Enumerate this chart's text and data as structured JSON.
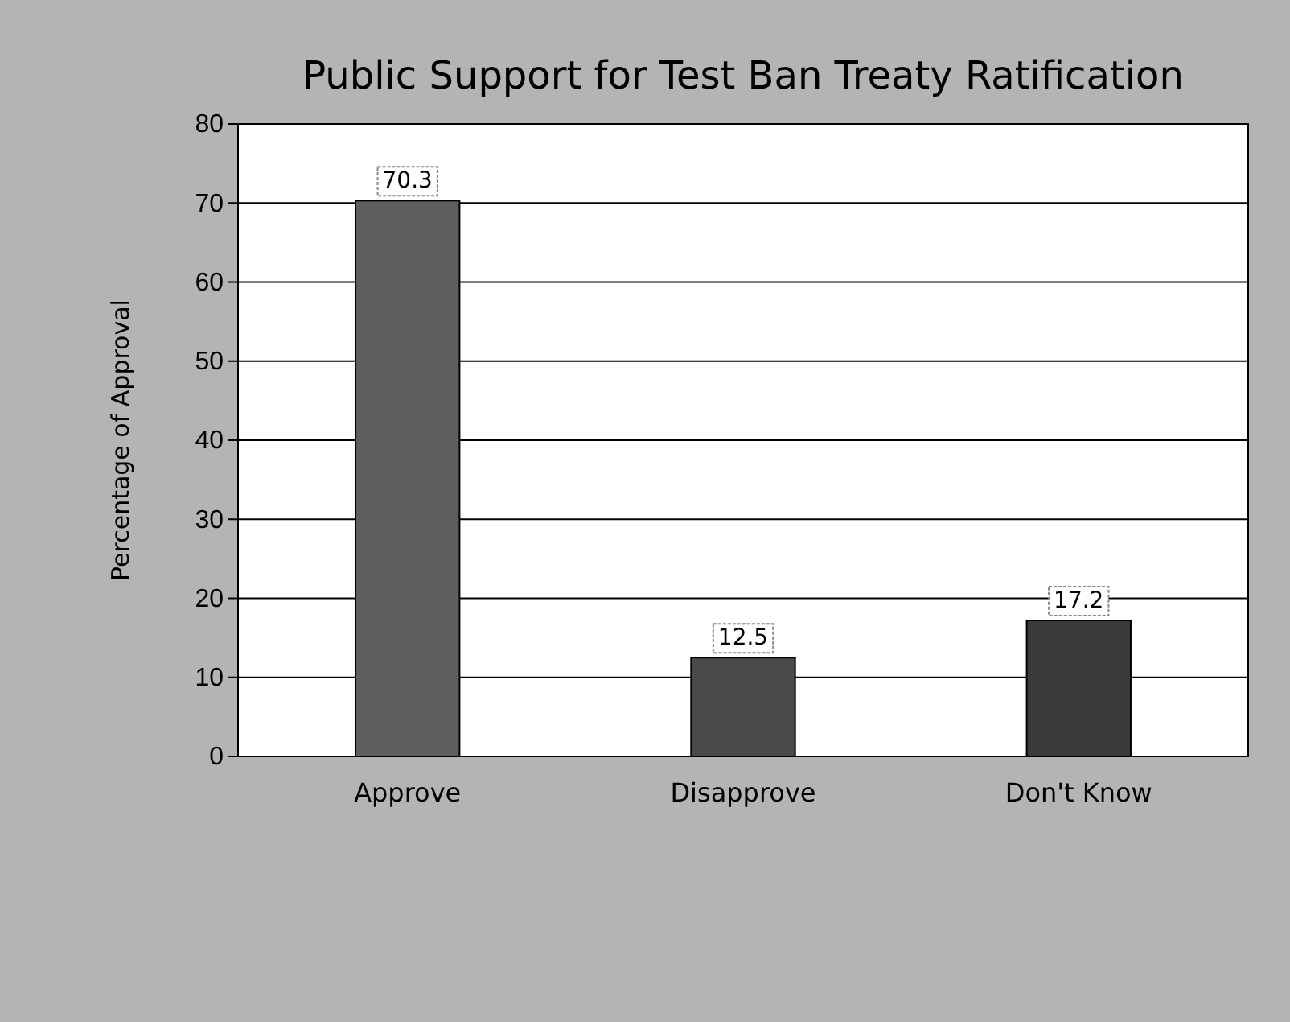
{
  "chart_data": {
    "type": "bar",
    "title": "Public Support for Test Ban Treaty Ratification",
    "ylabel": "Percentage of Approval",
    "categories": [
      "Approve",
      "Disapprove",
      "Don't Know"
    ],
    "values": [
      70.3,
      12.5,
      17.2
    ],
    "colors": [
      "#5e5e5e",
      "#4a4a4a",
      "#3a3a3a"
    ],
    "ylim": [
      0,
      80
    ],
    "yticks": [
      0,
      10,
      20,
      30,
      40,
      50,
      60,
      70,
      80
    ],
    "grid": "y",
    "data_labels": true
  }
}
